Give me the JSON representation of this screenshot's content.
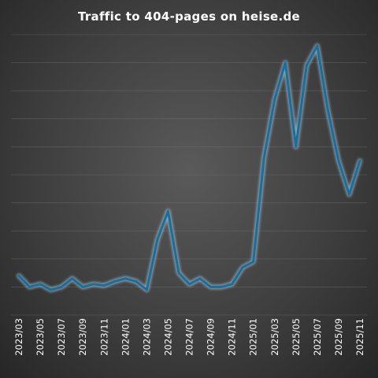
{
  "chart_data": {
    "type": "line",
    "title": "Traffic to 404-pages on heise.de",
    "xlabel": "",
    "ylabel": "",
    "grid": true,
    "colors": {
      "line": "#1a6e9a",
      "glow": "#a9cde6"
    },
    "x_tick_labels": [
      "2023/03",
      "2023/05",
      "2023/07",
      "2023/09",
      "2023/11",
      "2024/01",
      "2024/03",
      "2024/05",
      "2024/07",
      "2024/09",
      "2024/11",
      "2025/01",
      "2025/03",
      "2025/05",
      "2025/07",
      "2025/09",
      "2025/11"
    ],
    "x": [
      "2023/03",
      "2023/04",
      "2023/05",
      "2023/06",
      "2023/07",
      "2023/08",
      "2023/09",
      "2023/10",
      "2023/11",
      "2023/12",
      "2024/01",
      "2024/02",
      "2024/03",
      "2024/04",
      "2024/05",
      "2024/06",
      "2024/07",
      "2024/08",
      "2024/09",
      "2024/10",
      "2024/11",
      "2024/12",
      "2025/01",
      "2025/02",
      "2025/03",
      "2025/04",
      "2025/05",
      "2025/06",
      "2025/07",
      "2025/08",
      "2025/09",
      "2025/10",
      "2025/11"
    ],
    "series": [
      {
        "values": [
          14,
          10,
          11,
          9,
          10,
          13,
          10,
          11,
          10.5,
          12,
          13,
          12,
          9,
          27,
          37,
          15,
          11,
          13,
          10,
          10,
          11,
          17,
          19,
          56,
          77,
          90,
          60,
          89,
          96,
          73,
          55,
          43,
          55
        ]
      }
    ],
    "ylim": [
      0,
      100
    ]
  }
}
